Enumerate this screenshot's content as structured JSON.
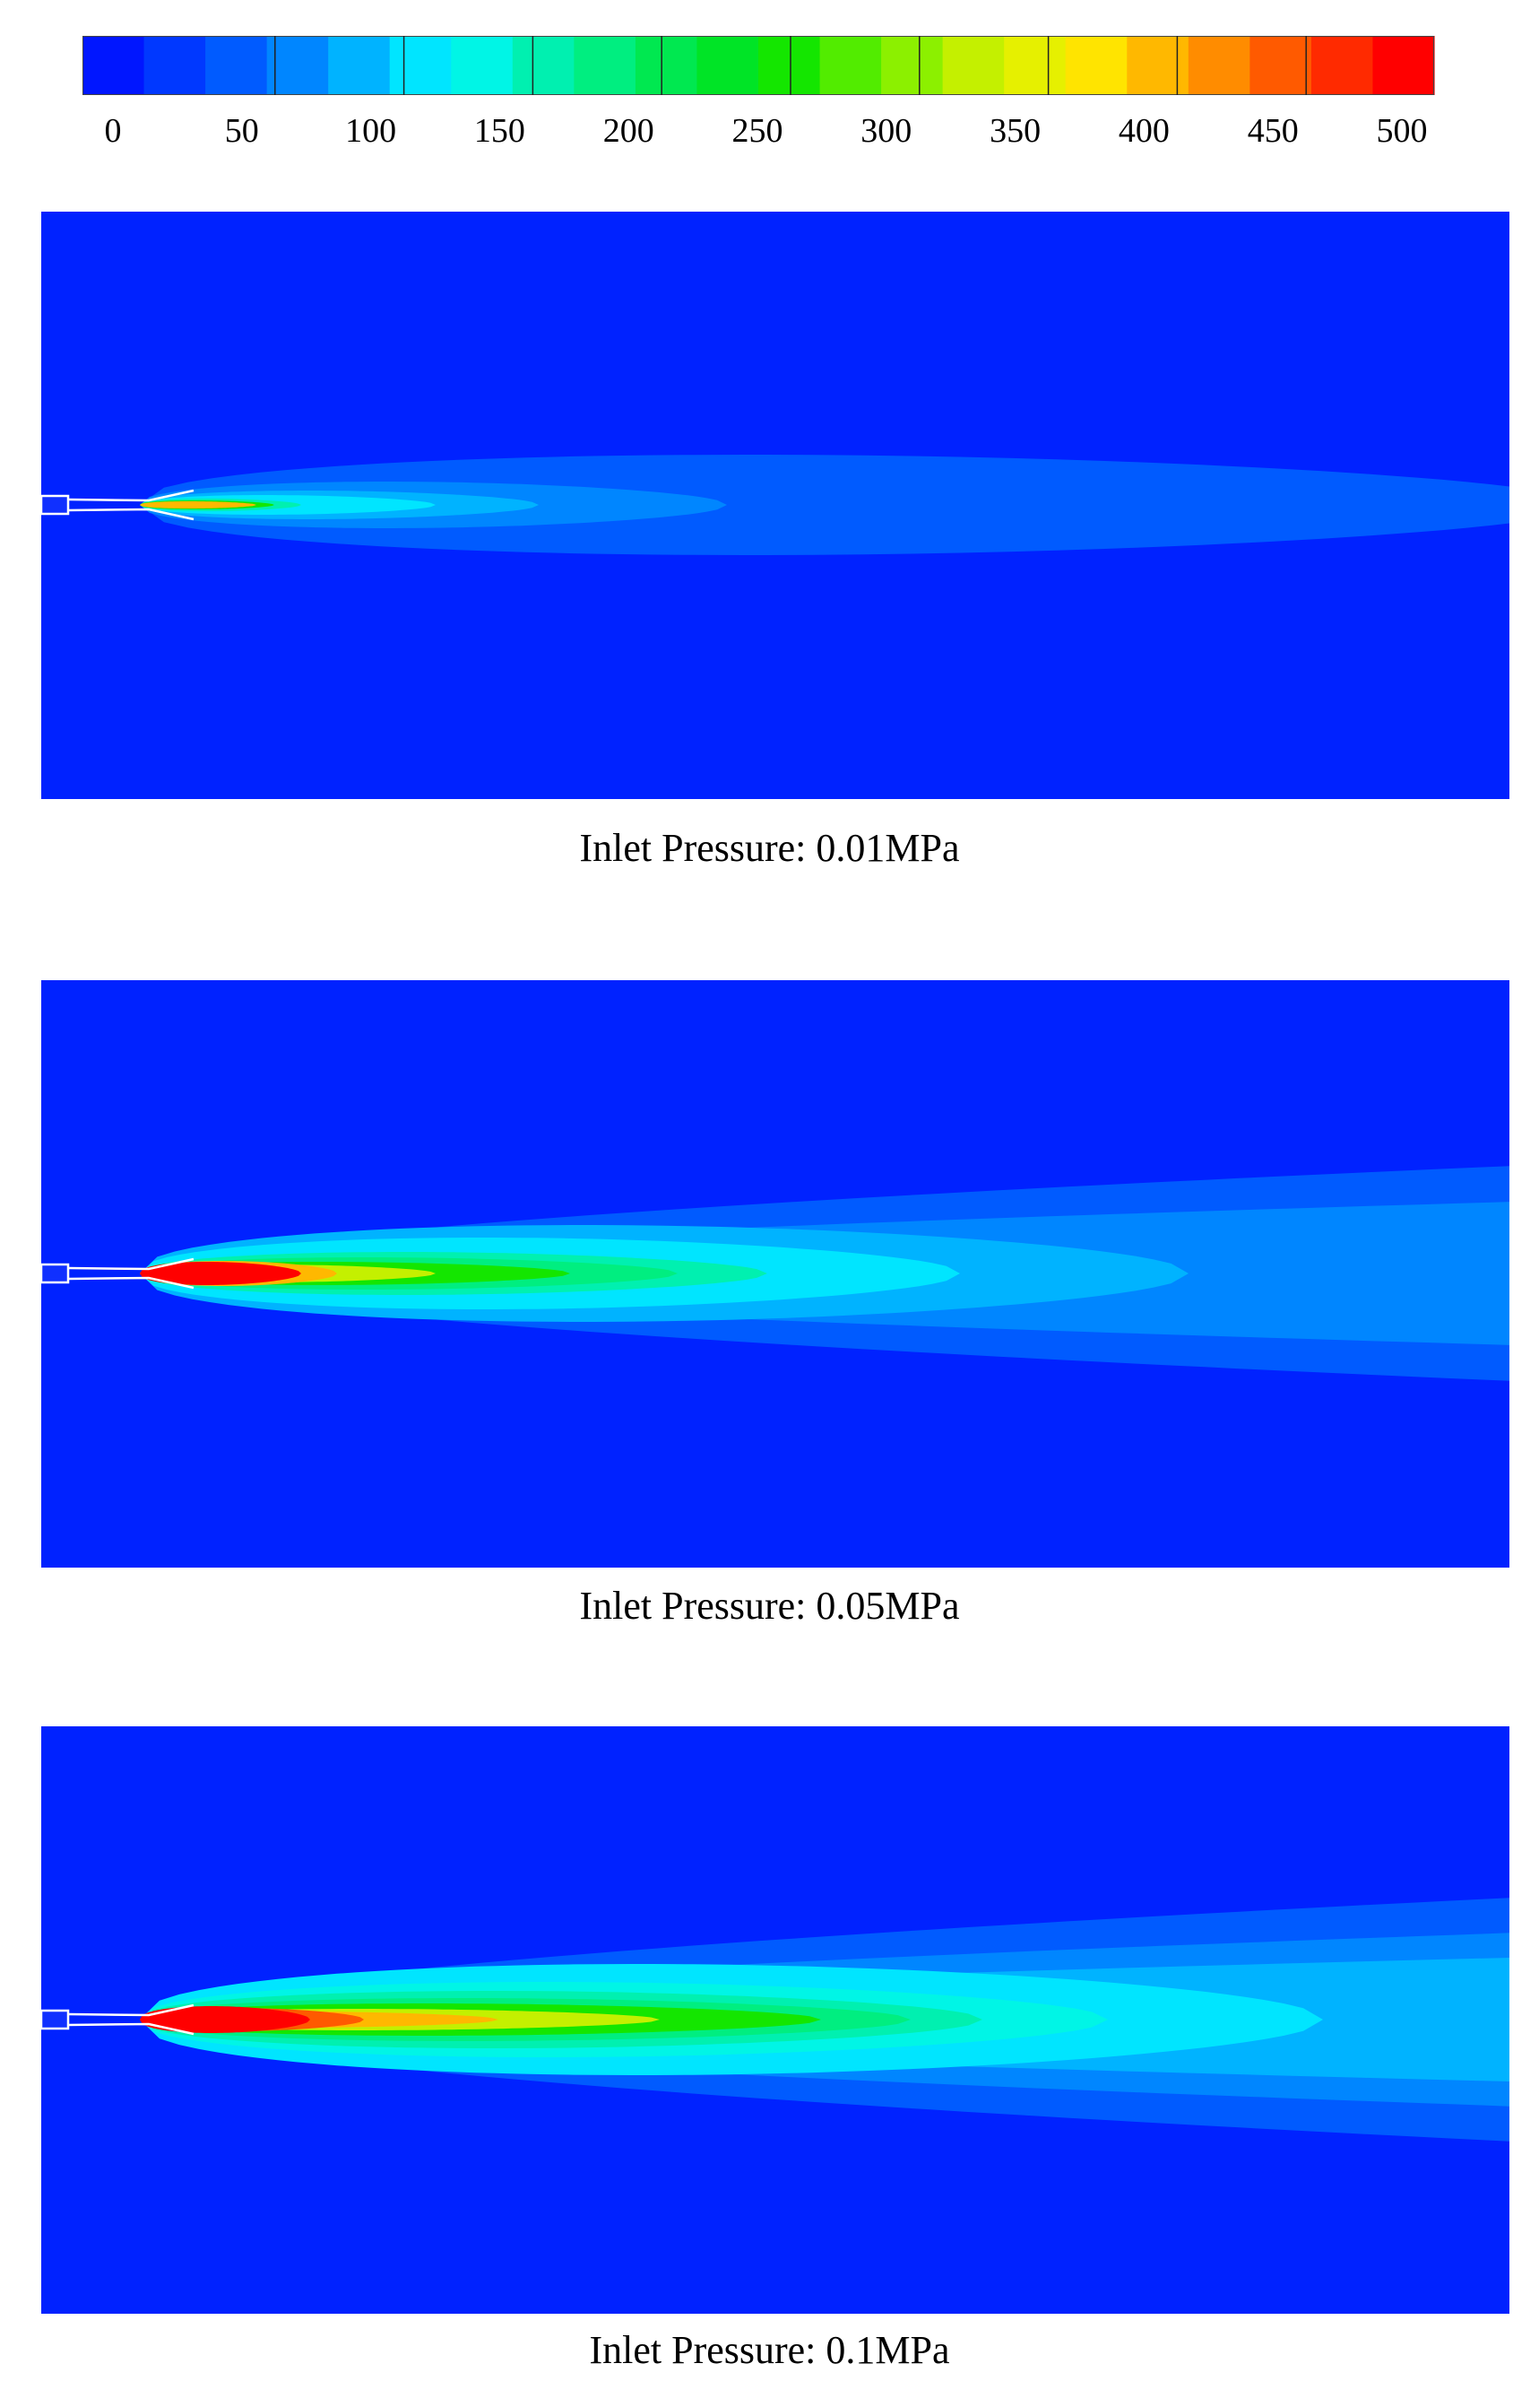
{
  "colorbar": {
    "ticks": [
      "0",
      "50",
      "100",
      "150",
      "200",
      "250",
      "300",
      "350",
      "400",
      "450",
      "500"
    ],
    "colors": [
      "#0016ff",
      "#0038ff",
      "#005bff",
      "#0086ff",
      "#00b3ff",
      "#00e5ff",
      "#00f5e6",
      "#00f0b0",
      "#00ee80",
      "#00e850",
      "#00e426",
      "#14e600",
      "#52ec00",
      "#8cf000",
      "#c4f000",
      "#e6f000",
      "#ffe400",
      "#ffb800",
      "#ff8c00",
      "#ff5a00",
      "#ff2a00",
      "#ff0000"
    ]
  },
  "panels": [
    {
      "caption": "Inlet Pressure: 0.01MPa",
      "levels": [
        {
          "color": "#005bff",
          "length": 1615,
          "half_width": 56,
          "spread": 0.0
        },
        {
          "color": "#0086ff",
          "length": 655,
          "half_width": 26,
          "spread": 0.0
        },
        {
          "color": "#00b3ff",
          "length": 445,
          "half_width": 16,
          "spread": 0.0
        },
        {
          "color": "#00e5ff",
          "length": 330,
          "half_width": 11,
          "spread": 0.0
        },
        {
          "color": "#00f0b0",
          "length": 180,
          "half_width": 7,
          "spread": 0.0
        },
        {
          "color": "#14e600",
          "length": 150,
          "half_width": 5,
          "spread": 0.0
        },
        {
          "color": "#ffb800",
          "length": 130,
          "half_width": 4,
          "spread": 0.0
        }
      ]
    },
    {
      "caption": "Inlet Pressure: 0.05MPa",
      "levels": [
        {
          "color": "#005bff",
          "length": 2300,
          "half_width": 150,
          "spread": 1.0
        },
        {
          "color": "#0086ff",
          "length": 2100,
          "half_width": 95,
          "spread": 1.0
        },
        {
          "color": "#00b3ff",
          "length": 1170,
          "half_width": 54,
          "spread": 0.0
        },
        {
          "color": "#00e5ff",
          "length": 915,
          "half_width": 40,
          "spread": 0.0
        },
        {
          "color": "#00f0b0",
          "length": 700,
          "half_width": 24,
          "spread": 0.0
        },
        {
          "color": "#00ee80",
          "length": 600,
          "half_width": 18,
          "spread": 0.0
        },
        {
          "color": "#14e600",
          "length": 480,
          "half_width": 13,
          "spread": 0.0
        },
        {
          "color": "#c4f000",
          "length": 330,
          "half_width": 10,
          "spread": 0.0
        },
        {
          "color": "#ffb800",
          "length": 220,
          "half_width": 14,
          "spread": 0.0
        },
        {
          "color": "#ff0000",
          "length": 180,
          "half_width": 13,
          "spread": 0.0
        }
      ]
    },
    {
      "caption": "Inlet Pressure: 0.1MPa",
      "levels": [
        {
          "color": "#005bff",
          "length": 2300,
          "half_width": 170,
          "spread": 1.0
        },
        {
          "color": "#0086ff",
          "length": 2200,
          "half_width": 118,
          "spread": 1.0
        },
        {
          "color": "#00b3ff",
          "length": 2000,
          "half_width": 80,
          "spread": 1.0
        },
        {
          "color": "#00e5ff",
          "length": 1320,
          "half_width": 62,
          "spread": 0.0
        },
        {
          "color": "#00f5e6",
          "length": 1080,
          "half_width": 42,
          "spread": 0.0
        },
        {
          "color": "#00f0b0",
          "length": 940,
          "half_width": 32,
          "spread": 0.0
        },
        {
          "color": "#00ee80",
          "length": 860,
          "half_width": 24,
          "spread": 0.0
        },
        {
          "color": "#14e600",
          "length": 760,
          "half_width": 18,
          "spread": 0.0
        },
        {
          "color": "#c4f000",
          "length": 580,
          "half_width": 12,
          "spread": 0.0
        },
        {
          "color": "#ffb800",
          "length": 400,
          "half_width": 9,
          "spread": 0.0
        },
        {
          "color": "#ff5a00",
          "length": 250,
          "half_width": 13,
          "spread": 0.0
        },
        {
          "color": "#ff0000",
          "length": 190,
          "half_width": 15,
          "spread": 0.0
        }
      ]
    }
  ],
  "colors": {
    "background": "#0022ff",
    "nozzle": "#ffffff"
  }
}
